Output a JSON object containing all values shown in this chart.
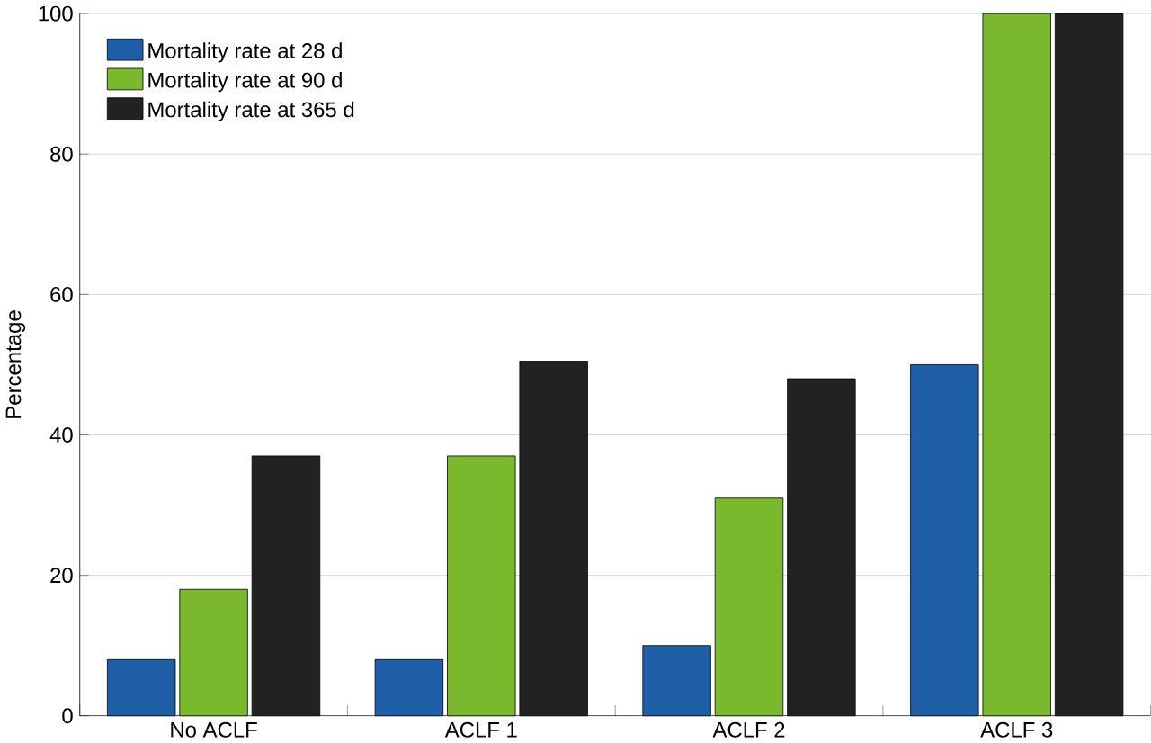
{
  "chart_data": {
    "type": "bar",
    "ylabel": "Percentage",
    "categories": [
      "No ACLF",
      "ACLF 1",
      "ACLF 2",
      "ACLF 3"
    ],
    "series": [
      {
        "name": "Mortality rate at 28 d",
        "color": "#1f5fa8",
        "values": [
          8,
          8,
          10,
          50
        ]
      },
      {
        "name": "Mortality rate at 90 d",
        "color": "#7ab82e",
        "values": [
          18,
          37,
          31,
          100
        ]
      },
      {
        "name": "Mortality rate at 365 d",
        "color": "#222222",
        "values": [
          37,
          50.5,
          48,
          100
        ]
      }
    ],
    "ylim": [
      0,
      100
    ],
    "yticks": [
      0,
      20,
      40,
      60,
      80,
      100
    ],
    "grid": "y",
    "legend": "top left"
  }
}
